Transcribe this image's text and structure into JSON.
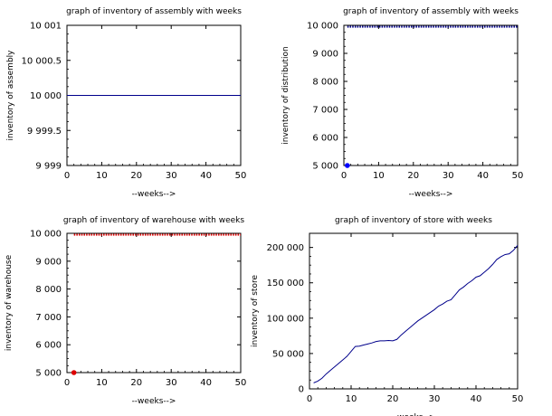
{
  "chart_data": [
    {
      "type": "line",
      "title": "graph of inventory of assembly with weeks",
      "xlabel": "--weeks-->",
      "ylabel": "inventory of assembly",
      "xlim": [
        0,
        50
      ],
      "ylim": [
        9999,
        10001
      ],
      "xticks": [
        0,
        10,
        20,
        30,
        40,
        50
      ],
      "xtick_labels": [
        "0",
        "10",
        "20",
        "30",
        "40",
        "50"
      ],
      "yticks": [
        9999,
        9999.5,
        10000,
        10000.5,
        10001
      ],
      "ytick_labels": [
        "9 999",
        "9 999.5",
        "10 000",
        "10 000.5",
        "10 001"
      ],
      "grid": false,
      "series": [
        {
          "color": "#00008b",
          "style": "line",
          "x": [
            0,
            50
          ],
          "y": [
            10000,
            10000
          ]
        }
      ]
    },
    {
      "type": "line",
      "title": "graph of inventory of assembly with weeks",
      "xlabel": "--weeks-->",
      "ylabel": "inventory of distribution",
      "xlim": [
        0,
        50
      ],
      "ylim": [
        5000,
        10000
      ],
      "xticks": [
        0,
        10,
        20,
        30,
        40,
        50
      ],
      "xtick_labels": [
        "0",
        "10",
        "20",
        "30",
        "40",
        "50"
      ],
      "yticks": [
        5000,
        6000,
        7000,
        8000,
        9000,
        10000
      ],
      "ytick_labels": [
        "5 000",
        "6 000",
        "7 000",
        "8 000",
        "9 000",
        "10 000"
      ],
      "grid": false,
      "series": [
        {
          "color": "#00008b",
          "style": "dotted-markers",
          "x": [
            1,
            50
          ],
          "y": [
            9950,
            9950
          ]
        },
        {
          "color": "#0000ff",
          "style": "marker",
          "x": [
            1
          ],
          "y": [
            5000
          ]
        }
      ]
    },
    {
      "type": "line",
      "title": "graph of inventory of warehouse with weeks",
      "xlabel": "--weeks-->",
      "ylabel": "inventory of warehouse",
      "xlim": [
        0,
        50
      ],
      "ylim": [
        5000,
        10000
      ],
      "xticks": [
        0,
        10,
        20,
        30,
        40,
        50
      ],
      "xtick_labels": [
        "0",
        "10",
        "20",
        "30",
        "40",
        "50"
      ],
      "yticks": [
        5000,
        6000,
        7000,
        8000,
        9000,
        10000
      ],
      "ytick_labels": [
        "5 000",
        "6 000",
        "7 000",
        "8 000",
        "9 000",
        "10 000"
      ],
      "grid": false,
      "series": [
        {
          "color": "#dd0000",
          "style": "dotted-markers",
          "x": [
            2,
            50
          ],
          "y": [
            9950,
            9950
          ]
        },
        {
          "color": "#dd0000",
          "style": "marker",
          "x": [
            2
          ],
          "y": [
            5000
          ]
        }
      ]
    },
    {
      "type": "line",
      "title": "graph of inventory of store with weeks",
      "xlabel": "--weeks-->",
      "ylabel": "inventory of store",
      "xlim": [
        0,
        50
      ],
      "ylim": [
        0,
        220000
      ],
      "xticks": [
        0,
        10,
        20,
        30,
        40,
        50
      ],
      "xtick_labels": [
        "0",
        "10",
        "20",
        "30",
        "40",
        "50"
      ],
      "yticks": [
        0,
        50000,
        100000,
        150000,
        200000
      ],
      "ytick_labels": [
        "0",
        "50 000",
        "100 000",
        "150 000",
        "200 000"
      ],
      "grid": false,
      "series": [
        {
          "color": "#00008b",
          "style": "line",
          "x": [
            1,
            2,
            3,
            4,
            5,
            6,
            7,
            8,
            9,
            10,
            11,
            12,
            13,
            14,
            15,
            16,
            17,
            18,
            19,
            20,
            21,
            22,
            23,
            24,
            25,
            26,
            27,
            28,
            29,
            30,
            31,
            32,
            33,
            34,
            35,
            36,
            37,
            38,
            39,
            40,
            41,
            42,
            43,
            44,
            45,
            46,
            47,
            48,
            49,
            50
          ],
          "y": [
            8500,
            11000,
            15000,
            21000,
            26000,
            31000,
            36000,
            41000,
            46000,
            53000,
            60000,
            60500,
            62000,
            63500,
            65000,
            67000,
            68000,
            68000,
            68500,
            68000,
            70000,
            76000,
            81000,
            86000,
            91000,
            96000,
            100000,
            104000,
            108000,
            112000,
            117000,
            120000,
            124000,
            126000,
            133000,
            140000,
            144000,
            149000,
            153000,
            158000,
            160000,
            165000,
            170000,
            176000,
            183000,
            187000,
            190000,
            191000,
            196000,
            203000
          ]
        }
      ]
    }
  ]
}
